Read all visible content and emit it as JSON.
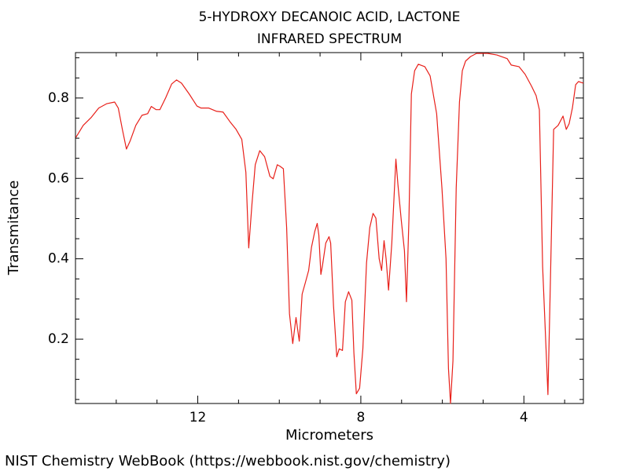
{
  "chart_data": {
    "type": "line",
    "title": "5-HYDROXY DECANOIC ACID, LACTONE",
    "subtitle": "INFRARED SPECTRUM",
    "x_label": "Micrometers",
    "y_label": "Transmitance",
    "footer": "NIST Chemistry WebBook (https://webbook.nist.gov/chemistry)",
    "color": "#e8201a",
    "xlim": [
      15.0,
      2.54
    ],
    "ylim": [
      0.04,
      0.913
    ],
    "xticks": [
      12,
      8,
      4
    ],
    "xminorticks": [
      14,
      13,
      11,
      10,
      9,
      7,
      6,
      5,
      3
    ],
    "yticks": [
      0.2,
      0.4,
      0.6,
      0.8
    ],
    "yminorticks": [
      0.05,
      0.1,
      0.15,
      0.25,
      0.3,
      0.35,
      0.45,
      0.5,
      0.55,
      0.65,
      0.7,
      0.75,
      0.85,
      0.9
    ],
    "x": [
      14.99,
      14.81,
      14.62,
      14.43,
      14.23,
      14.04,
      13.95,
      13.85,
      13.75,
      13.66,
      13.52,
      13.37,
      13.23,
      13.14,
      13.02,
      12.93,
      12.79,
      12.64,
      12.52,
      12.4,
      12.21,
      12.02,
      11.92,
      11.73,
      11.54,
      11.38,
      11.21,
      11.06,
      10.92,
      10.82,
      10.75,
      10.67,
      10.59,
      10.48,
      10.36,
      10.23,
      10.15,
      10.05,
      9.98,
      9.9,
      9.82,
      9.75,
      9.67,
      9.59,
      9.51,
      9.44,
      9.36,
      9.28,
      9.21,
      9.13,
      9.07,
      9.03,
      8.98,
      8.94,
      8.86,
      8.78,
      8.74,
      8.67,
      8.59,
      8.53,
      8.45,
      8.38,
      8.3,
      8.22,
      8.17,
      8.11,
      8.03,
      7.95,
      7.86,
      7.78,
      7.7,
      7.63,
      7.55,
      7.49,
      7.43,
      7.38,
      7.32,
      7.24,
      7.14,
      7.09,
      7.01,
      6.93,
      6.88,
      6.82,
      6.76,
      6.68,
      6.59,
      6.43,
      6.3,
      6.14,
      6.01,
      5.91,
      5.85,
      5.8,
      5.74,
      5.66,
      5.58,
      5.51,
      5.43,
      5.31,
      5.16,
      4.89,
      4.66,
      4.41,
      4.31,
      4.12,
      3.97,
      3.81,
      3.7,
      3.62,
      3.54,
      3.46,
      3.41,
      3.35,
      3.27,
      3.16,
      3.04,
      2.96,
      2.89,
      2.81,
      2.73,
      2.66,
      2.54
    ],
    "values": [
      0.702,
      0.732,
      0.751,
      0.775,
      0.786,
      0.79,
      0.775,
      0.722,
      0.673,
      0.693,
      0.732,
      0.757,
      0.761,
      0.779,
      0.771,
      0.771,
      0.8,
      0.835,
      0.845,
      0.837,
      0.81,
      0.78,
      0.775,
      0.775,
      0.767,
      0.765,
      0.741,
      0.722,
      0.697,
      0.615,
      0.427,
      0.537,
      0.634,
      0.669,
      0.654,
      0.605,
      0.599,
      0.634,
      0.63,
      0.624,
      0.478,
      0.263,
      0.189,
      0.254,
      0.195,
      0.312,
      0.341,
      0.371,
      0.429,
      0.468,
      0.488,
      0.459,
      0.361,
      0.384,
      0.439,
      0.455,
      0.439,
      0.283,
      0.156,
      0.176,
      0.172,
      0.293,
      0.318,
      0.297,
      0.166,
      0.064,
      0.078,
      0.176,
      0.39,
      0.478,
      0.513,
      0.501,
      0.4,
      0.371,
      0.445,
      0.4,
      0.322,
      0.439,
      0.648,
      0.585,
      0.498,
      0.42,
      0.293,
      0.498,
      0.81,
      0.868,
      0.884,
      0.878,
      0.855,
      0.761,
      0.576,
      0.4,
      0.127,
      0.04,
      0.146,
      0.576,
      0.79,
      0.868,
      0.892,
      0.903,
      0.911,
      0.911,
      0.907,
      0.898,
      0.882,
      0.878,
      0.859,
      0.829,
      0.806,
      0.771,
      0.38,
      0.185,
      0.062,
      0.341,
      0.722,
      0.732,
      0.755,
      0.722,
      0.736,
      0.775,
      0.833,
      0.841,
      0.837
    ]
  }
}
